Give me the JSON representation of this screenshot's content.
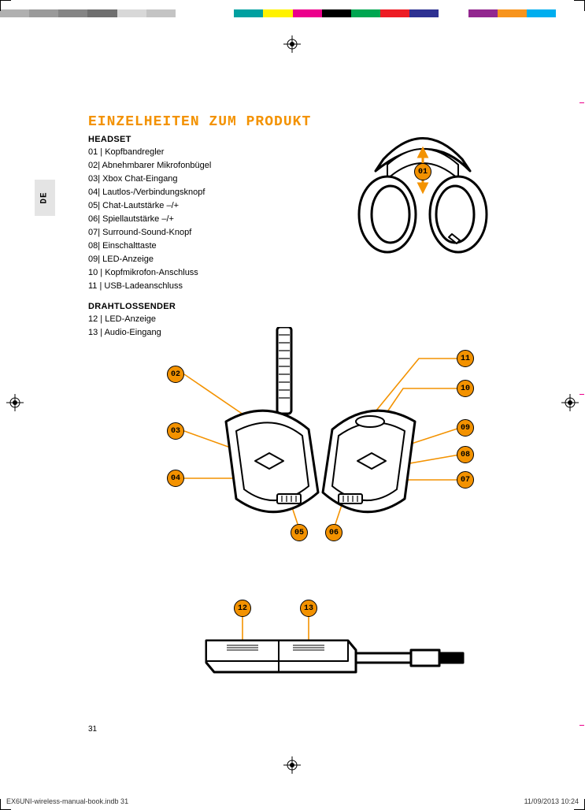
{
  "colorbar": [
    "#b0b0b0",
    "#9a9a9a",
    "#858585",
    "#6f6f6f",
    "#d8d8d8",
    "#c4c4c4",
    "#ffffff",
    "#ffffff",
    "#00a0a0",
    "#fff200",
    "#ec008c",
    "#000000",
    "#00a651",
    "#ed1c24",
    "#2e3192",
    "#ffffff",
    "#92278f",
    "#f7941d",
    "#00aeef",
    "#ffffff"
  ],
  "lang_tag": "DE",
  "title": "EINZELHEITEN ZUM PRODUKT",
  "sections": {
    "headset": {
      "head": "HEADSET",
      "items": [
        "01 | Kopfbandregler",
        "02| Abnehmbarer Mikrofonbügel",
        "03| Xbox Chat-Eingang",
        "04| Lautlos-/Verbindungsknopf",
        "05| Chat-Lautstärke –/+",
        "06| Spiellautstärke –/+",
        "07| Surround-Sound-Knopf",
        "08| Einschalttaste",
        "09| LED-Anzeige",
        "10 | Kopfmikrofon-Anschluss",
        "11 | USB-Ladeanschluss"
      ]
    },
    "transmitter": {
      "head": "DRAHTLOSSENDER",
      "items": [
        "12 | LED-Anzeige",
        "13 | Audio-Eingang"
      ]
    }
  },
  "badges": {
    "b01": "01",
    "b02": "02",
    "b03": "03",
    "b04": "04",
    "b05": "05",
    "b06": "06",
    "b07": "07",
    "b08": "08",
    "b09": "09",
    "b10": "10",
    "b11": "11",
    "b12": "12",
    "b13": "13"
  },
  "page_number": "31",
  "footer_left": "EX6UNI-wireless-manual-book.indb   31",
  "footer_right": "11/09/2013   10:24",
  "colors": {
    "accent": "#f39200",
    "ink": "#000000",
    "bg": "#ffffff",
    "tab": "#e4e4e4"
  }
}
